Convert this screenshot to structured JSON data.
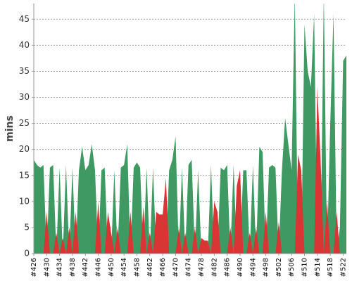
{
  "chart_data": {
    "type": "area",
    "y_label": "mins",
    "categories": [
      "#426",
      null,
      null,
      null,
      "#430",
      null,
      null,
      null,
      "#434",
      null,
      null,
      null,
      "#438",
      null,
      null,
      null,
      "#442",
      null,
      null,
      null,
      "#446",
      null,
      null,
      null,
      "#450",
      null,
      null,
      null,
      "#454",
      null,
      null,
      null,
      "#458",
      null,
      null,
      null,
      "#462",
      null,
      null,
      null,
      "#466",
      null,
      null,
      null,
      "#470",
      null,
      null,
      null,
      "#474",
      null,
      null,
      null,
      "#478",
      null,
      null,
      null,
      "#482",
      null,
      null,
      null,
      "#486",
      null,
      null,
      null,
      "#490",
      null,
      null,
      null,
      "#494",
      null,
      null,
      null,
      "#498",
      null,
      null,
      null,
      "#502",
      null,
      null,
      null,
      "#506",
      null,
      null,
      null,
      "#510",
      null,
      null,
      null,
      "#514",
      null,
      null,
      null,
      "#518",
      null,
      null,
      null,
      "#522",
      null
    ],
    "series": [
      {
        "color": "#3e9a62",
        "values": [
          18,
          17,
          16.5,
          17,
          0,
          16.5,
          17,
          0,
          16.5,
          0,
          17,
          0,
          16.5,
          0,
          16,
          20.5,
          16,
          17,
          21,
          16,
          0,
          16,
          16.5,
          0,
          0,
          16,
          0,
          16.5,
          17,
          21,
          0,
          16.5,
          17.5,
          16.5,
          0,
          16.5,
          0,
          16.5,
          0,
          0,
          0,
          0,
          16,
          18,
          22.5,
          0,
          16.5,
          0,
          17,
          18,
          0,
          16,
          0,
          0,
          0,
          17,
          0,
          0,
          16.5,
          16,
          17,
          0,
          17,
          0,
          0,
          16,
          16,
          0,
          17,
          0,
          20.5,
          19.5,
          0,
          16.5,
          17,
          16.5,
          0,
          16,
          26,
          21,
          16,
          50,
          0,
          0,
          44,
          35,
          32,
          46,
          0,
          0,
          50,
          0,
          25,
          46,
          0,
          5,
          37,
          38
        ]
      },
      {
        "color": "#d93535",
        "values": [
          0,
          0,
          0,
          0,
          8,
          0,
          0,
          4,
          0,
          3,
          0,
          5,
          0,
          8,
          0,
          0,
          0,
          0,
          0,
          0,
          10,
          0,
          0,
          8,
          4,
          0,
          5,
          0,
          0,
          0,
          8,
          0,
          0,
          0,
          9,
          0,
          4,
          0,
          8,
          7.5,
          7.5,
          14.5,
          0,
          0,
          0,
          5,
          0,
          4,
          0,
          0,
          5,
          0,
          3,
          2.5,
          2.5,
          0,
          10,
          8,
          0,
          0,
          0,
          5,
          0,
          13,
          16,
          0,
          0,
          4,
          0,
          5,
          0,
          0,
          8,
          0,
          0,
          0,
          6,
          0,
          0,
          0,
          0,
          0,
          19,
          16,
          0,
          0,
          0,
          0,
          32,
          18,
          0,
          10,
          0,
          0,
          8,
          0,
          0,
          0
        ]
      }
    ],
    "ylim": [
      0,
      48
    ],
    "yticks": [
      0,
      5,
      10,
      15,
      20,
      25,
      30,
      35,
      40,
      45
    ],
    "grid": true
  }
}
